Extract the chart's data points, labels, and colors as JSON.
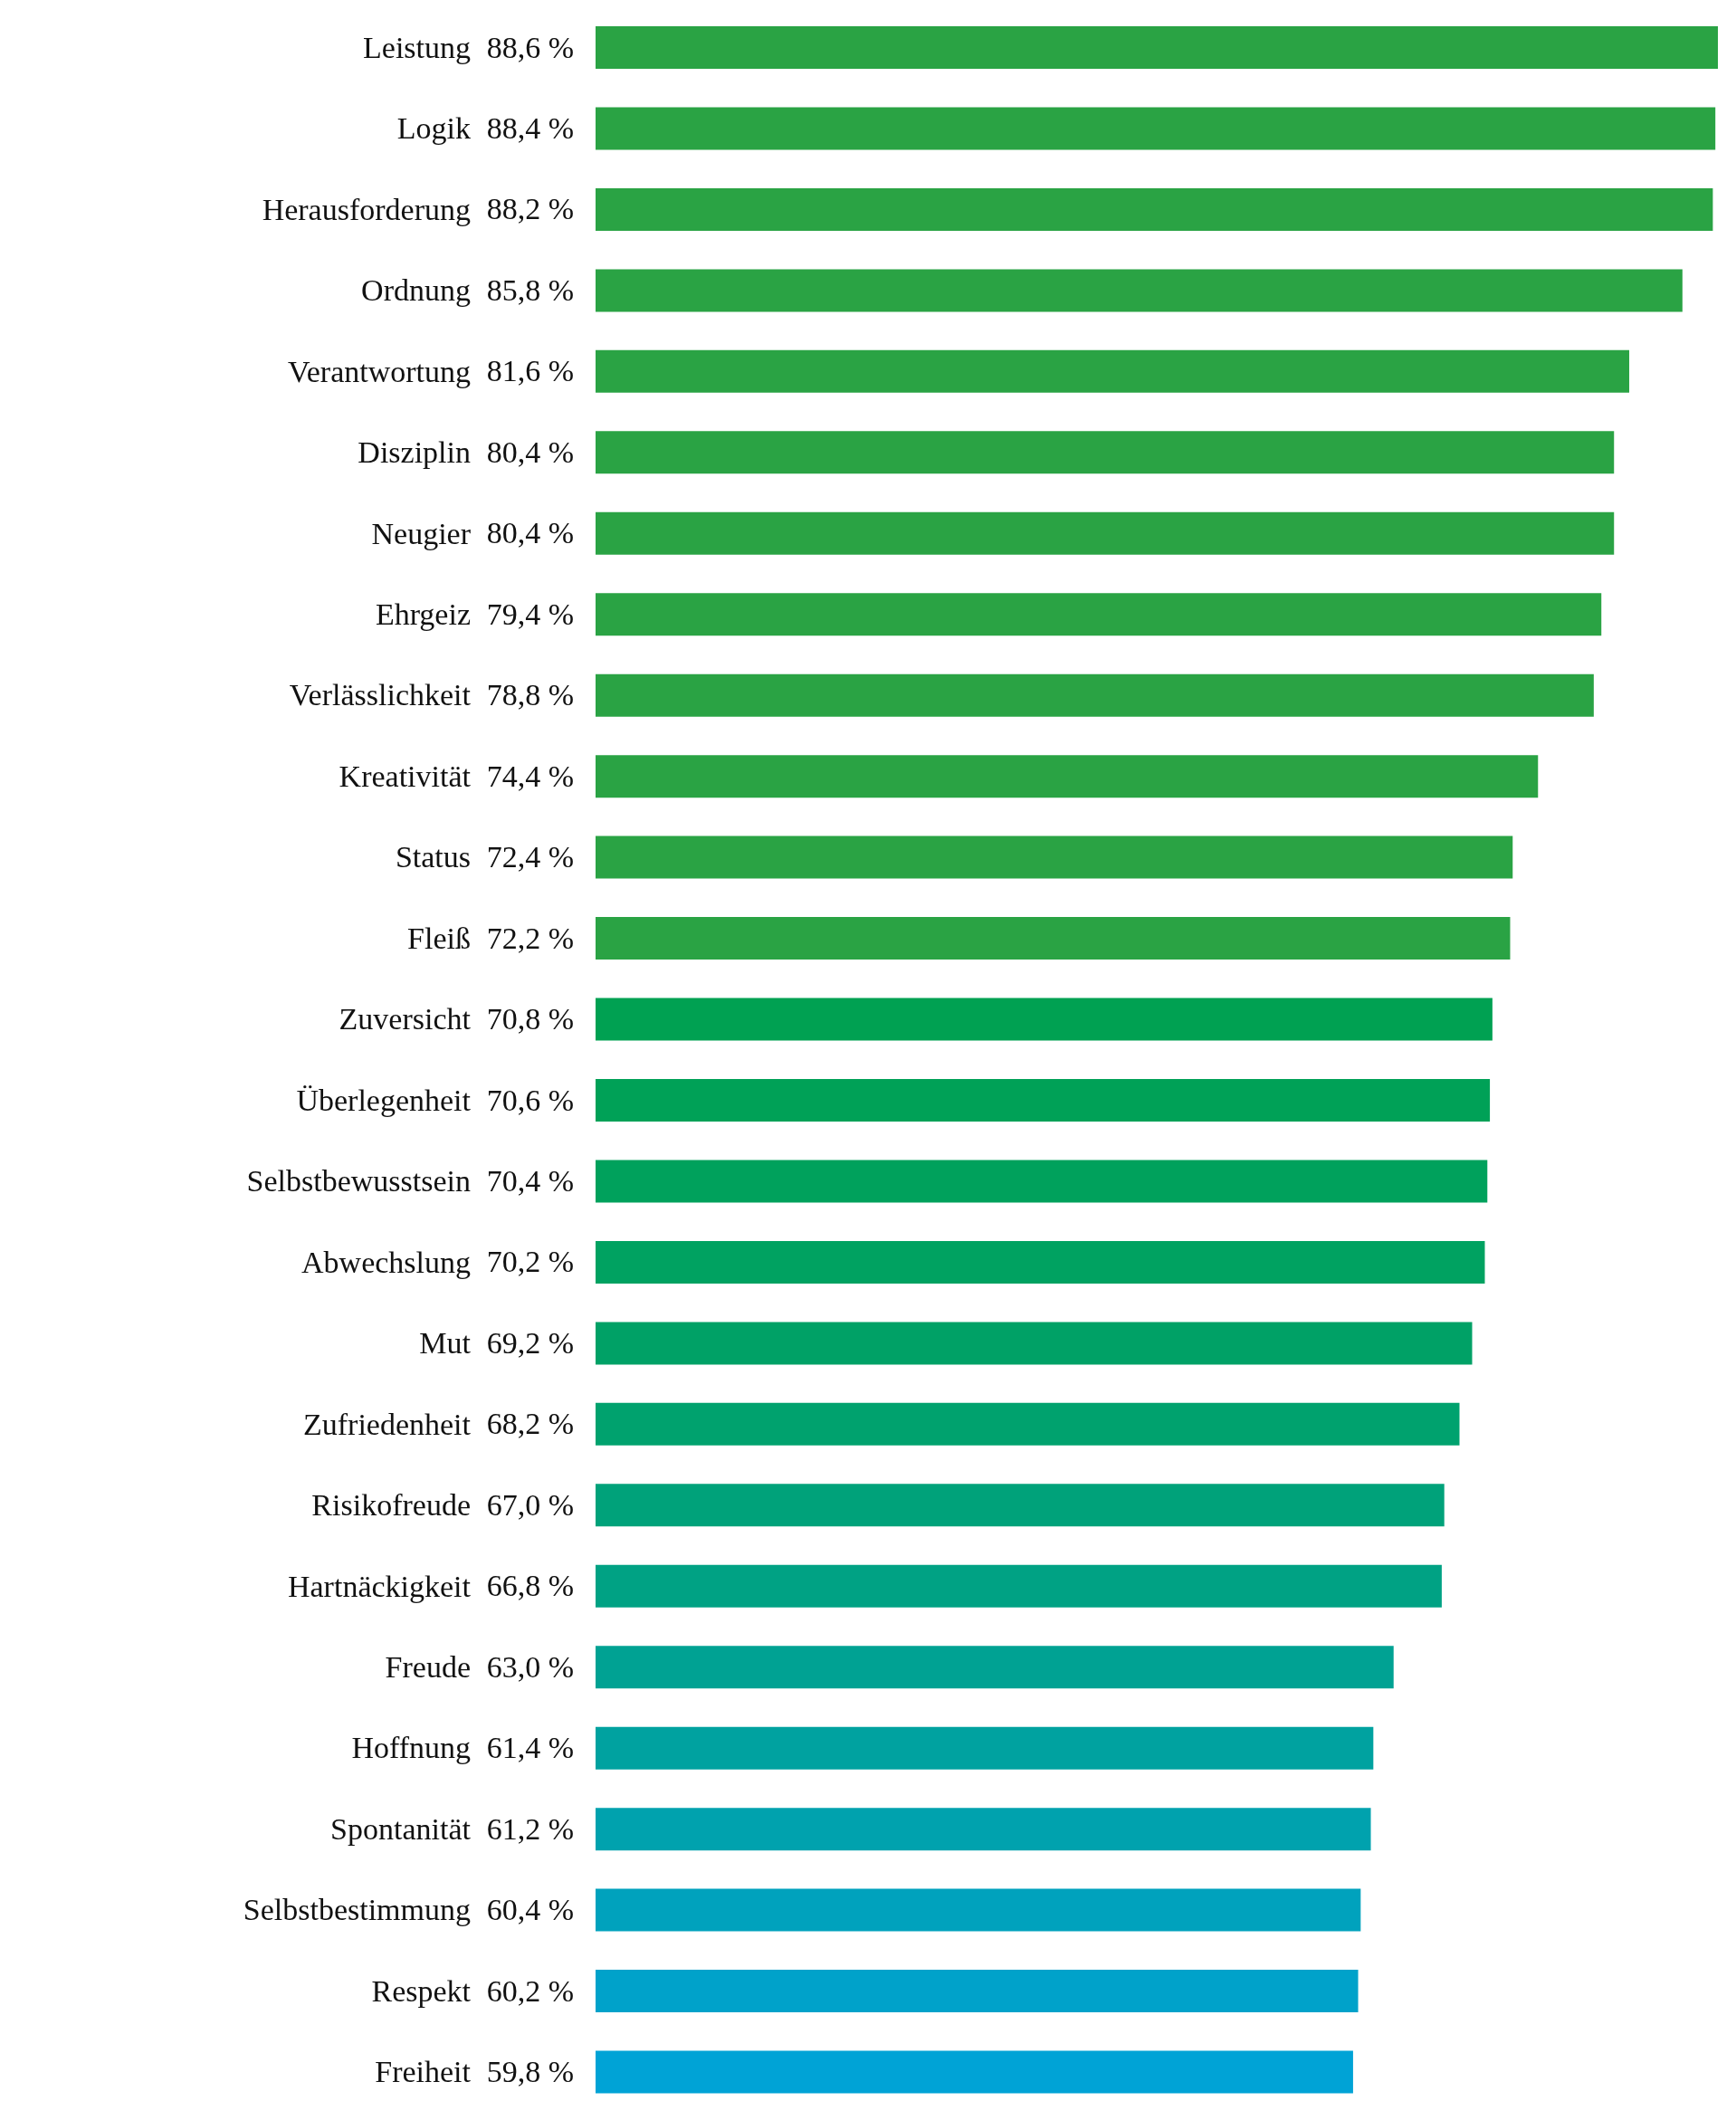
{
  "chart_data": {
    "type": "bar",
    "orientation": "horizontal",
    "categories": [
      "Leistung",
      "Logik",
      "Herausforderung",
      "Ordnung",
      "Verantwortung",
      "Disziplin",
      "Neugier",
      "Ehrgeiz",
      "Verlässlichkeit",
      "Kreativität",
      "Status",
      "Fleiß",
      "Zuversicht",
      "Überlegenheit",
      "Selbstbewusstsein",
      "Abwechslung",
      "Mut",
      "Zufriedenheit",
      "Risikofreude",
      "Hartnäckigkeit",
      "Freude",
      "Hoffnung",
      "Spontanität",
      "Selbstbestimmung",
      "Respekt",
      "Freiheit"
    ],
    "values": [
      88.6,
      88.4,
      88.2,
      85.8,
      81.6,
      80.4,
      80.4,
      79.4,
      78.8,
      74.4,
      72.4,
      72.2,
      70.8,
      70.6,
      70.4,
      70.2,
      69.2,
      68.2,
      67.0,
      66.8,
      63.0,
      61.4,
      61.2,
      60.4,
      60.2,
      59.8
    ],
    "value_labels": [
      "88,6 %",
      "88,4 %",
      "88,2 %",
      "85,8 %",
      "81,6 %",
      "80,4 %",
      "80,4 %",
      "79,4 %",
      "78,8 %",
      "74,4 %",
      "72,4 %",
      "72,2 %",
      "70,8 %",
      "70,6 %",
      "70,4 %",
      "70,2 %",
      "69,2 %",
      "68,2 %",
      "67,0 %",
      "66,8 %",
      "63,0 %",
      "61,4 %",
      "61,2 %",
      "60,4 %",
      "60,2 %",
      "59,8 %"
    ],
    "colors": [
      "#2aa344",
      "#2aa344",
      "#2aa344",
      "#2aa344",
      "#2aa344",
      "#2aa344",
      "#2aa344",
      "#2aa344",
      "#2aa344",
      "#2aa344",
      "#2aa344",
      "#2aa344",
      "#00a152",
      "#00a157",
      "#00a15c",
      "#00a261",
      "#00a166",
      "#00a26e",
      "#00a27a",
      "#00a284",
      "#00a293",
      "#00a2a0",
      "#00a2ae",
      "#00a2bd",
      "#00a2ca",
      "#00a3d6"
    ]
  }
}
